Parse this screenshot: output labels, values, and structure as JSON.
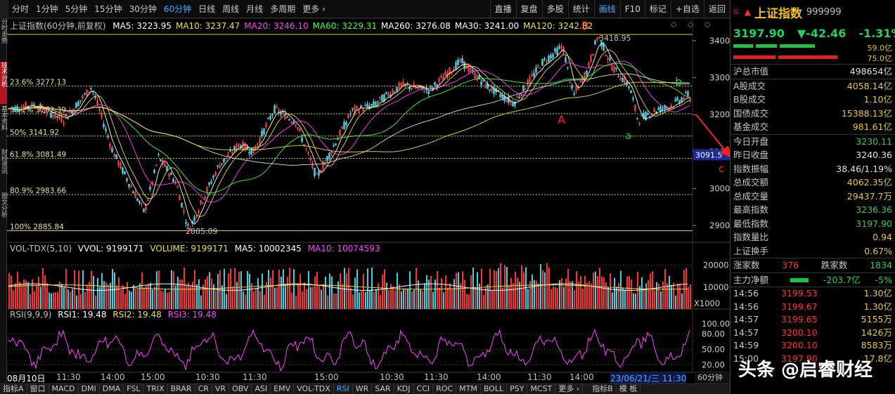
{
  "toolbar": {
    "period_tabs": [
      "分时",
      "1分钟",
      "5分钟",
      "15分钟",
      "30分钟",
      "60分钟",
      "日线",
      "周线",
      "月线",
      "多周期",
      "更多 ›"
    ],
    "active_period": "60分钟",
    "right_tabs": [
      "直播",
      "复盘",
      "多股",
      "统计",
      "画线",
      "F10",
      "标记",
      "+自选",
      "返回"
    ],
    "active_right": "画线"
  },
  "left_strip": [
    "分时走势",
    "技术分析",
    "基本资料",
    "财经资讯",
    "图文分析"
  ],
  "chart": {
    "title": "上证指数(60分钟,前复权)",
    "ma": [
      {
        "label": "MA5: 3223.95",
        "color": "#ffffff"
      },
      {
        "label": "MA10: 3237.47",
        "color": "#f0e040"
      },
      {
        "label": "MA20: 3246.10",
        "color": "#ff40ff"
      },
      {
        "label": "MA60: 3229.31",
        "color": "#40ff40"
      },
      {
        "label": "MA260: 3276.08",
        "color": "#ffffff"
      },
      {
        "label": "MA30: 3241.00",
        "color": "#ffffff"
      },
      {
        "label": "MA120: 3242.82",
        "color": "#f0e040"
      }
    ],
    "icons": "◇ ◇ ◇",
    "yticks": [
      "3400",
      "3300",
      "3200",
      "3100",
      "3000",
      "2900"
    ],
    "fib": [
      {
        "label": "23.6% 3277.13",
        "y": 3277.13
      },
      {
        "label": "38.2% 3202.39",
        "y": 3202.39
      },
      {
        "label": "50% 3141.92",
        "y": 3141.92
      },
      {
        "label": "61.8% 3081.49",
        "y": 3081.49
      },
      {
        "label": "80.9% 2983.66",
        "y": 2983.66
      },
      {
        "label": "100% 2885.84",
        "y": 2885.84
      }
    ],
    "high_label": "3418.95",
    "low_label": "2885.09",
    "price_tag": "3091.5",
    "wave_labels": {
      "B": "B",
      "A": "A",
      "a": "a",
      "b": "b",
      "c": "c"
    }
  },
  "volume": {
    "title": "VOL-TDX(5,10)",
    "vvol": "VVOL: 9199171",
    "volume": "VOLUME: 9199171",
    "ma5": "MA5: 10002345",
    "ma10": "MA10: 10074593",
    "yticks": [
      "20000",
      "10000",
      "X1000"
    ]
  },
  "rsi": {
    "title": "RSI(9,9,9)",
    "rsi1": "RSI1: 19.48",
    "rsi2": "RSI2: 19.48",
    "rsi3": "RSI3: 19.48",
    "yticks": [
      "100.00",
      "80.00",
      "50.00",
      "20.00"
    ]
  },
  "time_axis": [
    "08月10日",
    "11:30",
    "14:00",
    "15:00",
    "10:30",
    "11:30",
    "15:00",
    "10:30",
    "11:30",
    "14:00",
    "11:30",
    "14:00",
    "15:00",
    "10:30"
  ],
  "time_axis_tail": "23/06/21/三 11:30",
  "bottom_tabs": [
    "指标A",
    "窗口",
    "MACD",
    "DMI",
    "DMA",
    "FSL",
    "TRIX",
    "BRAR",
    "CR",
    "VR",
    "OBV",
    "ASI",
    "EMV",
    "VOL-TDX",
    "RSI",
    "WR",
    "SAR",
    "KDJ",
    "CCI",
    "ROC",
    "MTM",
    "BOLL",
    "PSY",
    "MCST",
    "更多 ›",
    "",
    "指标B",
    "模 板"
  ],
  "active_bottom": "RSI",
  "extra_period": "60分钟",
  "quote": {
    "flag": "G",
    "name": "上证指数",
    "code": "999999",
    "price": "3197.90",
    "change": "▼-42.46",
    "pct": "-1.31%",
    "bar_val1": "59.0亿",
    "bar_val2": "75.0亿",
    "rows1": [
      {
        "k": "沪总市值",
        "v": "498654亿",
        "c": ""
      }
    ],
    "rows2": [
      {
        "k": "A股成交",
        "v": "4058.14亿",
        "c": "y"
      },
      {
        "k": "B股成交",
        "v": "1.10亿",
        "c": "y"
      },
      {
        "k": "国债成交",
        "v": "15388.13亿",
        "c": "y"
      },
      {
        "k": "基金成交",
        "v": "981.61亿",
        "c": "y"
      }
    ],
    "rows3": [
      {
        "k": "今日开盘",
        "v": "3230.11",
        "c": "g"
      },
      {
        "k": "昨日收盘",
        "v": "3240.36",
        "c": ""
      },
      {
        "k": "指数振幅",
        "v": "38.46/1.19%",
        "c": ""
      },
      {
        "k": "总成交额",
        "v": "4062.35亿",
        "c": "y"
      },
      {
        "k": "总成交量",
        "v": "29437.7万",
        "c": "y"
      },
      {
        "k": "最高指数",
        "v": "3236.36",
        "c": "g"
      },
      {
        "k": "最低指数",
        "v": "3197.90",
        "c": "g"
      },
      {
        "k": "指数量比",
        "v": "0.94",
        "c": "y"
      },
      {
        "k": "上证换手",
        "v": "0.67%",
        "c": "y"
      }
    ],
    "updown": {
      "up_label": "涨家数",
      "up": "376",
      "down_label": "跌家数",
      "down": "1834"
    },
    "netflow": {
      "label": "主力净额",
      "value": "-203.7亿",
      "pct": "-5%"
    },
    "ticks": [
      {
        "t": "14:56",
        "p": "3199.53",
        "q": "1.30亿"
      },
      {
        "t": "14:56",
        "p": "3199.67",
        "q": "1.30亿"
      },
      {
        "t": "14:57",
        "p": "3199.65",
        "q": "5155万"
      },
      {
        "t": "14:57",
        "p": "3200.10",
        "q": "1426万"
      },
      {
        "t": "14:59",
        "p": "3200.10",
        "q": "8583万"
      },
      {
        "t": "15:00",
        "p": "3197.90",
        "q": "17.8亿"
      }
    ]
  },
  "watermark": "头条 @启睿财经"
}
